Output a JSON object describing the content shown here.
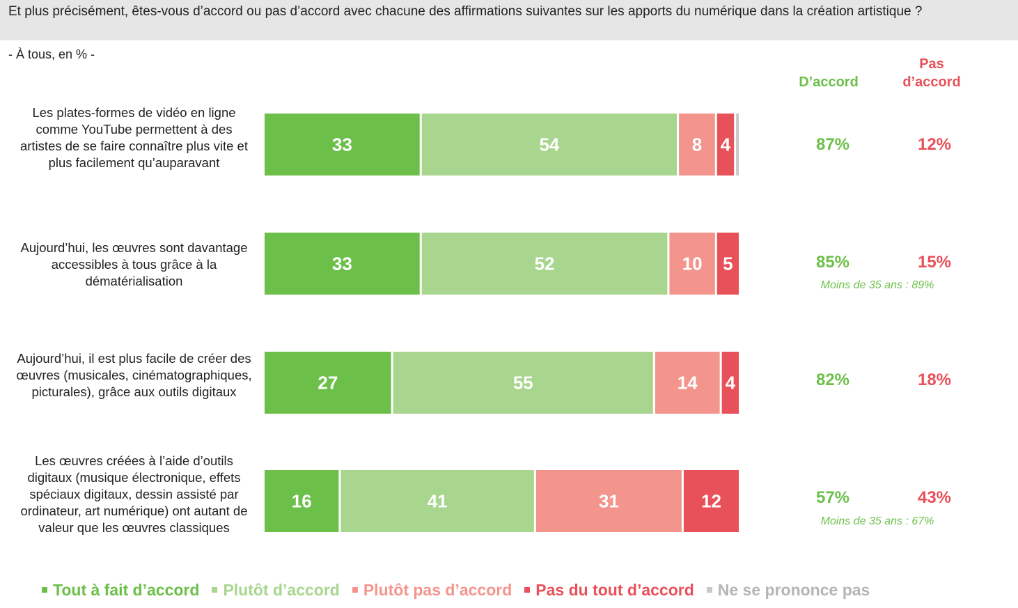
{
  "question": "Et plus précisément, êtes-vous d’accord ou pas d’accord avec chacune des affirmations suivantes sur les apports du numérique dans la création artistique ?",
  "subtitle": "- À tous, en % -",
  "headers": {
    "accord": "D’accord",
    "pas_accord_line1": "Pas",
    "pas_accord_line2": "d’accord"
  },
  "colors": {
    "tout_a_fait": "#6cc04a",
    "plutot": "#a9d68e",
    "plutot_pas": "#f4958d",
    "pas_du_tout": "#e8515a",
    "nsp": "#c8c8c8"
  },
  "rows": [
    {
      "label": "Les plates-formes de vidéo en ligne comme YouTube permettent à des artistes de se faire connaître plus vite et plus facilement qu’auparavant",
      "accord": "87%",
      "pas_accord": "12%",
      "note": ""
    },
    {
      "label": "Aujourd’hui, les œuvres sont davantage accessibles à tous grâce à la dématérialisation",
      "accord": "85%",
      "pas_accord": "15%",
      "note": "Moins de 35 ans : 89%"
    },
    {
      "label": "Aujourd’hui, il est plus facile de créer des œuvres (musicales, cinématographiques, picturales), grâce aux outils digitaux",
      "accord": "82%",
      "pas_accord": "18%",
      "note": ""
    },
    {
      "label": "Les œuvres créées à l’aide d’outils digitaux (musique électronique, effets spéciaux digitaux, dessin assisté par ordinateur, art numérique) ont autant de valeur que les œuvres classiques",
      "accord": "57%",
      "pas_accord": "43%",
      "note": "Moins de 35 ans : 67%"
    }
  ],
  "chart_data": {
    "type": "bar",
    "orientation": "horizontal",
    "stacked": true,
    "categories": [
      "Les plates-formes de vidéo en ligne comme YouTube permettent à des artistes de se faire connaître plus vite et plus facilement qu’auparavant",
      "Aujourd’hui, les œuvres sont davantage accessibles à tous grâce à la dématérialisation",
      "Aujourd’hui, il est plus facile de créer des œuvres (musicales, cinématographiques, picturales), grâce aux outils digitaux",
      "Les œuvres créées à l’aide d’outils digitaux (musique électronique, effets spéciaux digitaux, dessin assisté par ordinateur, art numérique) ont autant de valeur que les œuvres classiques"
    ],
    "series": [
      {
        "name": "Tout à fait d’accord",
        "color": "#6cc04a",
        "values": [
          33,
          33,
          27,
          16
        ]
      },
      {
        "name": "Plutôt d’accord",
        "color": "#a9d68e",
        "values": [
          54,
          52,
          55,
          41
        ]
      },
      {
        "name": "Plutôt pas d’accord",
        "color": "#f4958d",
        "values": [
          8,
          10,
          14,
          31
        ]
      },
      {
        "name": "Pas du tout d’accord",
        "color": "#e8515a",
        "values": [
          4,
          5,
          4,
          12
        ]
      },
      {
        "name": "Ne se prononce pas",
        "color": "#c8c8c8",
        "values": [
          1,
          0,
          0,
          0
        ]
      }
    ],
    "data_labels": [
      [
        "33",
        "54",
        "8",
        "4",
        ""
      ],
      [
        "33",
        "52",
        "10",
        "5",
        ""
      ],
      [
        "27",
        "55",
        "14",
        "4",
        ""
      ],
      [
        "16",
        "41",
        "31",
        "12",
        ""
      ]
    ],
    "xlim": [
      0,
      100
    ],
    "legend": "bottom",
    "grid": false
  }
}
